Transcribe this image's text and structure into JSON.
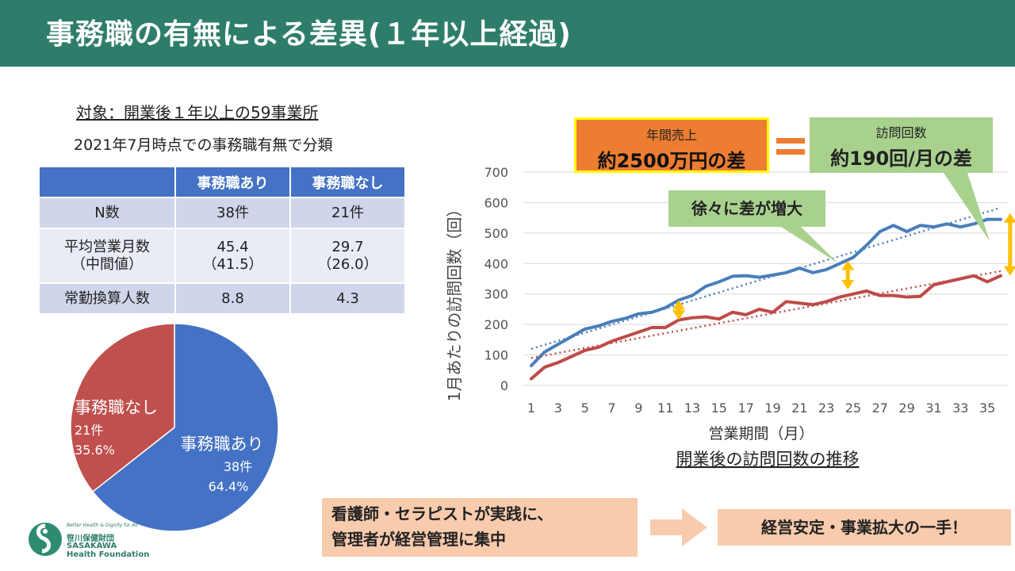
{
  "title": "事務職の有無による差異(１年以上経過)",
  "subtitle1": "対象：開業後１年以上の59事業所",
  "subtitle2": "2021年7月時点での事務職有無で分類",
  "table": {
    "headers": [
      "",
      "事務職あり",
      "事務職なし"
    ],
    "rows": [
      {
        "label": "N数",
        "a": "38件",
        "b": "21件"
      },
      {
        "label": "平均営業月数",
        "label2": "（中間値）",
        "a": "45.4",
        "a2": "（41.5）",
        "b": "29.7",
        "b2": "（26.0）"
      },
      {
        "label": "常勤換算人数",
        "a": "8.8",
        "b": "4.3"
      }
    ]
  },
  "pie": {
    "slices": [
      {
        "name": "事務職あり",
        "count_label": "38件",
        "percent_label": "64.4%",
        "value": 64.4,
        "color": "#4472c4"
      },
      {
        "name": "事務職なし",
        "count_label": "21件",
        "percent_label": "35.6%",
        "value": 35.6,
        "color": "#c0504d"
      }
    ]
  },
  "callouts": {
    "sales_label": "年間売上",
    "sales_value": "約2500万円の差",
    "visits_label": "訪問回数",
    "visits_value": "約190回/月の差",
    "increase": "徐々に差が増大",
    "bottom_left_line1": "看護師・セラピストが実践に、",
    "bottom_left_line2": "管理者が経営管理に集中",
    "bottom_right": "経営安定・事業拡大の一手！"
  },
  "logo": {
    "tagline": "Better Health & Dignity for All",
    "name": "笹川保健財団",
    "name_en_1": "SASAKAWA",
    "name_en_2": "Health Foundation"
  },
  "chart_data": {
    "type": "line",
    "title": "開業後の訪問回数の推移",
    "xlabel": "営業期間（月）",
    "ylabel": "1月あたりの訪問回数（回）",
    "ylim": [
      0,
      700
    ],
    "yticks": [
      0,
      100,
      200,
      300,
      400,
      500,
      600,
      700
    ],
    "xtick_labels": [
      "1",
      "3",
      "5",
      "7",
      "9",
      "11",
      "13",
      "15",
      "17",
      "19",
      "21",
      "23",
      "25",
      "27",
      "29",
      "31",
      "33",
      "35"
    ],
    "x": [
      1,
      2,
      3,
      4,
      5,
      6,
      7,
      8,
      9,
      10,
      11,
      12,
      13,
      14,
      15,
      16,
      17,
      18,
      19,
      20,
      21,
      22,
      23,
      24,
      25,
      26,
      27,
      28,
      29,
      30,
      31,
      32,
      33,
      34,
      35,
      36
    ],
    "grid": true,
    "series": [
      {
        "name": "事務職あり",
        "color": "#4a7ebb",
        "values": [
          65,
          110,
          135,
          160,
          185,
          195,
          210,
          220,
          235,
          240,
          255,
          280,
          295,
          325,
          340,
          358,
          360,
          355,
          362,
          370,
          385,
          370,
          380,
          400,
          420,
          460,
          505,
          525,
          505,
          525,
          520,
          530,
          520,
          530,
          545,
          545
        ],
        "trend": [
          120,
          583
        ]
      },
      {
        "name": "事務職なし",
        "color": "#be4b48",
        "values": [
          22,
          60,
          75,
          95,
          115,
          125,
          145,
          160,
          175,
          190,
          190,
          215,
          222,
          225,
          218,
          240,
          232,
          250,
          240,
          275,
          270,
          265,
          275,
          290,
          300,
          310,
          295,
          295,
          290,
          292,
          330,
          340,
          350,
          360,
          340,
          360
        ],
        "trend": [
          90,
          375
        ]
      }
    ]
  }
}
